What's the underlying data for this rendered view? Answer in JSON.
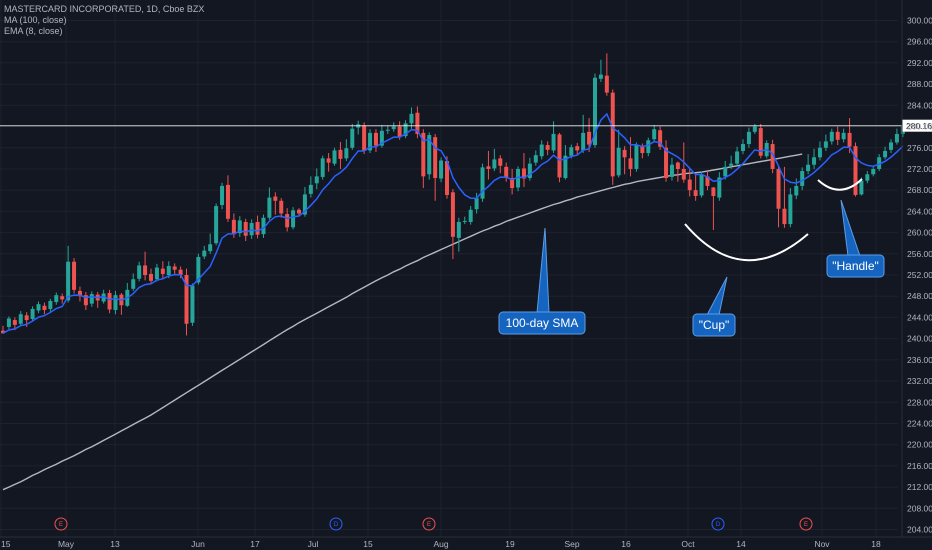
{
  "header": {
    "symbol_line": "MASTERCARD INCORPORATED, 1D, Cboe BZX",
    "ma_line": "MA (100, close)",
    "ema_line": "EMA (8, close)"
  },
  "colors": {
    "background": "#131722",
    "up": "#26a69a",
    "down": "#ef5350",
    "ema": "#2962ff",
    "sma": "#d1d4dc",
    "callout": "#1565c0",
    "grid": "#1e222d"
  },
  "price_tag": "280.16",
  "events": [
    {
      "label": "E",
      "color": "#ef5350"
    },
    {
      "label": "D",
      "color": "#2962ff"
    },
    {
      "label": "E",
      "color": "#ef5350"
    },
    {
      "label": "D",
      "color": "#2962ff"
    },
    {
      "label": "E",
      "color": "#ef5350"
    }
  ],
  "annotations": {
    "sma": "100-day SMA",
    "cup": "\"Cup\"",
    "handle": "\"Handle\""
  },
  "chart_data": {
    "type": "candlestick",
    "title": "MASTERCARD INCORPORATED, 1D, Cboe BZX",
    "y_ticks": [
      "300.00",
      "296.00",
      "292.00",
      "288.00",
      "284.00",
      "280.00",
      "276.00",
      "272.00",
      "268.00",
      "264.00",
      "260.00",
      "256.00",
      "252.00",
      "248.00",
      "244.00",
      "240.00",
      "236.00",
      "232.00",
      "228.00",
      "224.00",
      "220.00",
      "216.00",
      "212.00",
      "208.00",
      "204.00"
    ],
    "x_ticks": [
      "15",
      "May",
      "13",
      "Jun",
      "17",
      "Jul",
      "15",
      "Aug",
      "19",
      "Sep",
      "16",
      "Oct",
      "14",
      "Nov",
      "18"
    ],
    "ylim": [
      202,
      302
    ],
    "last_price": 280.16,
    "grid": true,
    "candles": [
      [
        241.5,
        241.0,
        241.0,
        242.4
      ],
      [
        242.2,
        243.8,
        241.8,
        244.2
      ],
      [
        243.5,
        242.6,
        241.6,
        244.0
      ],
      [
        242.8,
        244.6,
        242.4,
        245.2
      ],
      [
        244.4,
        243.5,
        242.2,
        245.0
      ],
      [
        243.7,
        245.6,
        243.2,
        246.1
      ],
      [
        245.3,
        246.5,
        244.8,
        247.0
      ],
      [
        246.2,
        245.4,
        244.6,
        246.8
      ],
      [
        245.6,
        247.1,
        245.1,
        247.5
      ],
      [
        246.9,
        248.2,
        246.4,
        248.7
      ],
      [
        248.0,
        247.4,
        246.6,
        248.5
      ],
      [
        247.2,
        254.5,
        246.8,
        257.5
      ],
      [
        254.5,
        249.2,
        248.5,
        255.2
      ],
      [
        249.0,
        248.0,
        247.0,
        249.8
      ],
      [
        248.2,
        246.3,
        245.4,
        248.8
      ],
      [
        246.6,
        248.4,
        246.0,
        248.9
      ],
      [
        248.3,
        247.2,
        245.8,
        248.8
      ],
      [
        247.0,
        248.5,
        246.6,
        249.2
      ],
      [
        248.6,
        245.5,
        244.8,
        249.2
      ],
      [
        245.4,
        248.2,
        244.6,
        249.0
      ],
      [
        248.3,
        246.3,
        244.5,
        248.6
      ],
      [
        246.2,
        249.2,
        246.0,
        250.5
      ],
      [
        249.4,
        251.2,
        249.0,
        252.3
      ],
      [
        251.3,
        253.8,
        250.8,
        254.5
      ],
      [
        253.8,
        252.0,
        251.0,
        256.4
      ],
      [
        252.2,
        250.9,
        250.2,
        253.2
      ],
      [
        251.2,
        253.4,
        250.8,
        254.1
      ],
      [
        253.2,
        252.2,
        251.2,
        254.6
      ],
      [
        252.0,
        253.7,
        251.4,
        254.6
      ],
      [
        253.6,
        253.0,
        252.0,
        254.2
      ],
      [
        253.0,
        252.0,
        251.4,
        253.6
      ],
      [
        252.0,
        242.8,
        240.6,
        253.2
      ],
      [
        243.0,
        250.0,
        242.4,
        250.4
      ],
      [
        250.6,
        255.4,
        250.2,
        256.0
      ],
      [
        255.5,
        256.6,
        255.0,
        257.5
      ],
      [
        256.5,
        257.8,
        256.0,
        259.8
      ],
      [
        258.0,
        265.0,
        257.6,
        265.5
      ],
      [
        265.2,
        268.8,
        264.4,
        269.4
      ],
      [
        269.0,
        262.6,
        262.0,
        270.8
      ],
      [
        262.4,
        259.7,
        259.0,
        263.6
      ],
      [
        259.9,
        262.3,
        259.2,
        263.1
      ],
      [
        262.0,
        259.4,
        258.4,
        262.6
      ],
      [
        259.5,
        261.8,
        258.8,
        262.5
      ],
      [
        262.0,
        259.6,
        258.9,
        263.2
      ],
      [
        259.7,
        262.8,
        259.0,
        263.4
      ],
      [
        262.8,
        266.6,
        262.4,
        268.5
      ],
      [
        266.8,
        266.0,
        263.4,
        267.6
      ],
      [
        266.0,
        263.6,
        262.8,
        266.5
      ],
      [
        263.5,
        261.0,
        260.2,
        264.6
      ],
      [
        261.0,
        264.2,
        260.6,
        264.8
      ],
      [
        264.3,
        263.6,
        263.0,
        264.6
      ],
      [
        263.4,
        267.2,
        263.0,
        268.6
      ],
      [
        267.3,
        269.0,
        266.6,
        270.6
      ],
      [
        269.3,
        270.6,
        268.2,
        272.1
      ],
      [
        270.5,
        274.0,
        270.0,
        274.5
      ],
      [
        274.0,
        273.2,
        271.5,
        275.0
      ],
      [
        273.0,
        275.5,
        272.6,
        276.0
      ],
      [
        275.6,
        273.9,
        272.0,
        277.1
      ],
      [
        274.0,
        275.9,
        273.5,
        277.6
      ],
      [
        276.0,
        279.6,
        275.6,
        280.5
      ],
      [
        279.8,
        280.4,
        278.5,
        281.1
      ],
      [
        280.2,
        275.4,
        274.8,
        280.8
      ],
      [
        275.5,
        278.8,
        275.0,
        279.5
      ],
      [
        278.8,
        276.4,
        275.2,
        279.5
      ],
      [
        276.4,
        279.2,
        276.0,
        280.3
      ],
      [
        279.2,
        279.4,
        278.6,
        280.2
      ],
      [
        279.5,
        280.0,
        279.0,
        280.8
      ],
      [
        280.0,
        278.0,
        277.5,
        281.0
      ],
      [
        278.2,
        280.6,
        277.8,
        281.2
      ],
      [
        280.6,
        282.4,
        279.6,
        283.6
      ],
      [
        282.6,
        278.6,
        277.8,
        283.8
      ],
      [
        278.8,
        270.6,
        268.4,
        279.5
      ],
      [
        271.0,
        278.4,
        270.0,
        278.9
      ],
      [
        278.0,
        270.3,
        266.0,
        278.6
      ],
      [
        270.2,
        273.6,
        269.5,
        274.2
      ],
      [
        273.5,
        267.1,
        266.4,
        274.4
      ],
      [
        267.6,
        259.2,
        255.0,
        268.2
      ],
      [
        259.0,
        262.0,
        256.4,
        262.8
      ],
      [
        262.0,
        262.2,
        261.6,
        263.0
      ],
      [
        262.0,
        264.3,
        261.5,
        265.0
      ],
      [
        264.4,
        266.5,
        263.6,
        267.5
      ],
      [
        266.4,
        272.3,
        265.8,
        273.0
      ],
      [
        272.5,
        272.0,
        270.0,
        275.4
      ],
      [
        272.1,
        273.8,
        271.6,
        275.8
      ],
      [
        274.0,
        272.6,
        271.2,
        274.6
      ],
      [
        272.4,
        270.4,
        269.6,
        273.2
      ],
      [
        270.3,
        268.4,
        267.2,
        272.0
      ],
      [
        268.5,
        272.0,
        267.8,
        272.5
      ],
      [
        272.1,
        270.2,
        268.6,
        275.0
      ],
      [
        270.3,
        273.0,
        269.8,
        274.1
      ],
      [
        273.2,
        274.6,
        272.6,
        275.5
      ],
      [
        274.4,
        276.6,
        273.8,
        277.4
      ],
      [
        276.5,
        275.6,
        274.6,
        277.2
      ],
      [
        275.5,
        278.6,
        275.0,
        281.0
      ],
      [
        278.5,
        270.4,
        269.5,
        278.8
      ],
      [
        270.3,
        274.5,
        270.0,
        276.5
      ],
      [
        274.5,
        276.1,
        274.0,
        276.6
      ],
      [
        276.3,
        275.5,
        274.6,
        276.9
      ],
      [
        275.5,
        278.8,
        275.0,
        282.2
      ],
      [
        279.0,
        276.6,
        275.2,
        281.6
      ],
      [
        276.5,
        289.2,
        276.0,
        290.0
      ],
      [
        289.0,
        289.8,
        288.4,
        292.6
      ],
      [
        289.6,
        286.4,
        285.8,
        293.8
      ],
      [
        286.4,
        270.6,
        269.0,
        287.0
      ],
      [
        270.8,
        276.0,
        270.4,
        279.4
      ],
      [
        275.6,
        274.2,
        271.0,
        276.3
      ],
      [
        274.0,
        272.0,
        270.6,
        278.0
      ],
      [
        272.0,
        276.6,
        271.5,
        277.0
      ],
      [
        276.4,
        275.0,
        274.0,
        276.8
      ],
      [
        275.0,
        277.4,
        274.4,
        277.9
      ],
      [
        277.6,
        279.5,
        277.0,
        280.3
      ],
      [
        279.3,
        276.2,
        275.6,
        280.0
      ],
      [
        276.0,
        270.3,
        269.6,
        277.4
      ],
      [
        270.5,
        272.8,
        269.8,
        274.1
      ],
      [
        273.2,
        272.0,
        269.6,
        273.4
      ],
      [
        272.0,
        270.0,
        269.4,
        277.0
      ],
      [
        270.0,
        268.0,
        266.8,
        272.2
      ],
      [
        268.0,
        266.9,
        266.0,
        271.2
      ],
      [
        267.0,
        271.0,
        266.6,
        271.5
      ],
      [
        270.6,
        268.8,
        268.0,
        271.6
      ],
      [
        268.5,
        266.9,
        260.5,
        268.6
      ],
      [
        266.6,
        270.4,
        266.0,
        271.4
      ],
      [
        270.6,
        272.4,
        270.0,
        273.5
      ],
      [
        272.6,
        273.0,
        272.0,
        274.5
      ],
      [
        273.0,
        275.3,
        272.6,
        276.2
      ],
      [
        275.4,
        276.7,
        274.8,
        277.6
      ],
      [
        276.7,
        279.0,
        276.0,
        279.8
      ],
      [
        279.0,
        280.0,
        278.6,
        280.5
      ],
      [
        279.7,
        274.5,
        274.0,
        280.5
      ],
      [
        274.4,
        276.9,
        274.0,
        277.4
      ],
      [
        276.7,
        272.0,
        271.2,
        277.5
      ],
      [
        272.0,
        264.5,
        261.0,
        272.6
      ],
      [
        264.5,
        261.6,
        260.9,
        272.4
      ],
      [
        261.6,
        267.2,
        261.0,
        268.4
      ],
      [
        267.0,
        268.8,
        266.3,
        270.2
      ],
      [
        268.8,
        271.6,
        268.0,
        272.3
      ],
      [
        271.6,
        272.8,
        271.0,
        274.8
      ],
      [
        272.8,
        274.2,
        272.0,
        275.8
      ],
      [
        274.2,
        276.0,
        273.6,
        277.2
      ],
      [
        276.0,
        277.2,
        275.4,
        278.5
      ],
      [
        277.2,
        279.0,
        276.6,
        279.6
      ],
      [
        279.0,
        277.5,
        276.5,
        280.0
      ],
      [
        277.6,
        278.8,
        277.0,
        279.6
      ],
      [
        278.8,
        276.2,
        275.0,
        281.6
      ],
      [
        276.3,
        267.1,
        266.8,
        277.0
      ],
      [
        267.2,
        269.8,
        267.0,
        270.4
      ],
      [
        269.8,
        271.0,
        269.3,
        271.6
      ],
      [
        271.0,
        272.0,
        270.6,
        272.6
      ],
      [
        272.0,
        274.2,
        271.6,
        274.8
      ],
      [
        274.2,
        275.4,
        273.8,
        276.2
      ],
      [
        275.6,
        277.0,
        275.0,
        277.6
      ],
      [
        277.0,
        278.6,
        276.6,
        279.6
      ],
      [
        278.6,
        280.2,
        278.0,
        280.8
      ]
    ],
    "series": [
      {
        "name": "MA (100, close)",
        "values": [
          211.5,
          212.0,
          212.5,
          213.0,
          213.6,
          214.2,
          214.7,
          215.3,
          215.8,
          216.3,
          216.9,
          217.4,
          217.9,
          218.5,
          219.1,
          219.6,
          220.2,
          220.8,
          221.4,
          222.0,
          222.6,
          223.2,
          223.8,
          224.4,
          225.0,
          225.6,
          226.3,
          227.0,
          227.7,
          228.4,
          229.1,
          229.8,
          230.5,
          231.2,
          231.9,
          232.6,
          233.3,
          234.0,
          234.7,
          235.4,
          236.1,
          236.8,
          237.5,
          238.2,
          238.9,
          239.6,
          240.3,
          241.0,
          241.7,
          242.3,
          243.0,
          243.6,
          244.2,
          244.8,
          245.4,
          246.0,
          246.6,
          247.2,
          247.8,
          248.5,
          249.1,
          249.7,
          250.3,
          250.9,
          251.5,
          252.0,
          252.6,
          253.1,
          253.7,
          254.2,
          254.7,
          255.3,
          255.8,
          256.3,
          256.8,
          257.3,
          257.8,
          258.3,
          258.8,
          259.3,
          259.8,
          260.3,
          260.7,
          261.2,
          261.6,
          262.1,
          262.5,
          262.9,
          263.3,
          263.7,
          264.1,
          264.5,
          264.9,
          265.3,
          265.6,
          266.0,
          266.3,
          266.7,
          267.0,
          267.3,
          267.6,
          267.9,
          268.2,
          268.5,
          268.8,
          269.1,
          269.3,
          269.6,
          269.8,
          270.0,
          270.2,
          270.4,
          270.6,
          270.8,
          270.9,
          271.1,
          271.2,
          271.3,
          271.4,
          271.6,
          271.8,
          272.0,
          272.2,
          272.4,
          272.6,
          272.8,
          273.0,
          273.2,
          273.4,
          273.6,
          273.8,
          274.0,
          274.2,
          274.4,
          274.6,
          274.8
        ]
      },
      {
        "name": "EMA (8, close)",
        "values": []
      }
    ]
  }
}
